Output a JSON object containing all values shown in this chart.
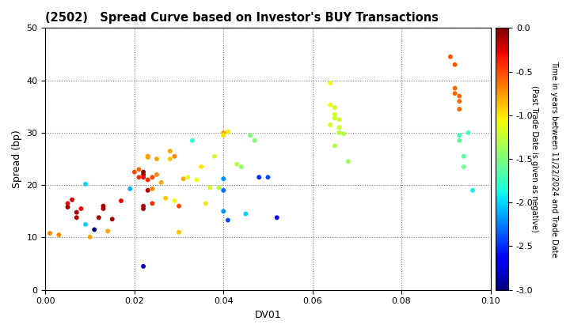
{
  "title": "(2502)   Spread Curve based on Investor's BUY Transactions",
  "xlabel": "DV01",
  "ylabel": "Spread (bp)",
  "xlim": [
    0.0,
    0.1
  ],
  "ylim": [
    0,
    50
  ],
  "xticks": [
    0.0,
    0.02,
    0.04,
    0.06,
    0.08,
    0.1
  ],
  "yticks": [
    0,
    10,
    20,
    30,
    40,
    50
  ],
  "colorbar_label_line1": "Time in years between 11/22/2024 and Trade Date",
  "colorbar_label_line2": "(Past Trade Date is given as negative)",
  "cmap": "jet",
  "vmin": -3.0,
  "vmax": 0.0,
  "points": [
    [
      0.001,
      10.8,
      -0.7
    ],
    [
      0.003,
      10.5,
      -0.7
    ],
    [
      0.005,
      16.5,
      -0.3
    ],
    [
      0.005,
      15.8,
      -0.1
    ],
    [
      0.006,
      17.2,
      -0.2
    ],
    [
      0.007,
      14.8,
      -0.1
    ],
    [
      0.007,
      13.8,
      -0.1
    ],
    [
      0.008,
      15.5,
      -0.3
    ],
    [
      0.009,
      12.5,
      -2.0
    ],
    [
      0.009,
      20.2,
      -2.0
    ],
    [
      0.01,
      10.1,
      -0.8
    ],
    [
      0.011,
      11.5,
      -3.0
    ],
    [
      0.012,
      13.8,
      -0.1
    ],
    [
      0.013,
      16.0,
      -0.1
    ],
    [
      0.013,
      15.5,
      -0.1
    ],
    [
      0.014,
      11.2,
      -0.8
    ],
    [
      0.015,
      13.5,
      -0.1
    ],
    [
      0.017,
      17.0,
      -0.3
    ],
    [
      0.019,
      19.3,
      -2.1
    ],
    [
      0.02,
      22.5,
      -0.5
    ],
    [
      0.021,
      21.5,
      -0.4
    ],
    [
      0.021,
      23.0,
      -0.6
    ],
    [
      0.022,
      22.5,
      -0.05
    ],
    [
      0.022,
      22.0,
      -0.05
    ],
    [
      0.022,
      21.5,
      -0.3
    ],
    [
      0.022,
      16.0,
      -0.1
    ],
    [
      0.022,
      15.5,
      -0.1
    ],
    [
      0.022,
      4.5,
      -2.8
    ],
    [
      0.023,
      21.0,
      -0.4
    ],
    [
      0.023,
      25.5,
      -0.7
    ],
    [
      0.023,
      19.0,
      -0.15
    ],
    [
      0.023,
      25.3,
      -0.8
    ],
    [
      0.024,
      19.3,
      -0.7
    ],
    [
      0.024,
      16.5,
      -0.4
    ],
    [
      0.024,
      21.5,
      -0.5
    ],
    [
      0.025,
      25.0,
      -0.8
    ],
    [
      0.025,
      22.0,
      -0.7
    ],
    [
      0.026,
      20.5,
      -0.8
    ],
    [
      0.027,
      17.5,
      -0.9
    ],
    [
      0.028,
      26.5,
      -0.8
    ],
    [
      0.028,
      25.0,
      -0.9
    ],
    [
      0.029,
      25.5,
      -0.7
    ],
    [
      0.029,
      17.0,
      -1.1
    ],
    [
      0.03,
      16.0,
      -0.5
    ],
    [
      0.03,
      11.0,
      -0.9
    ],
    [
      0.031,
      21.2,
      -0.8
    ],
    [
      0.032,
      21.5,
      -1.1
    ],
    [
      0.033,
      28.5,
      -1.8
    ],
    [
      0.034,
      21.0,
      -1.1
    ],
    [
      0.035,
      23.5,
      -1.0
    ],
    [
      0.036,
      16.5,
      -1.0
    ],
    [
      0.037,
      19.5,
      -1.2
    ],
    [
      0.038,
      25.5,
      -1.2
    ],
    [
      0.039,
      19.5,
      -1.3
    ],
    [
      0.04,
      30.0,
      -0.8
    ],
    [
      0.04,
      29.5,
      -1.0
    ],
    [
      0.04,
      15.0,
      -2.2
    ],
    [
      0.04,
      21.2,
      -2.2
    ],
    [
      0.04,
      19.0,
      -2.3
    ],
    [
      0.041,
      13.3,
      -2.4
    ],
    [
      0.041,
      30.2,
      -1.0
    ],
    [
      0.043,
      24.0,
      -1.3
    ],
    [
      0.044,
      23.5,
      -1.4
    ],
    [
      0.045,
      14.5,
      -2.0
    ],
    [
      0.046,
      29.5,
      -1.5
    ],
    [
      0.047,
      28.5,
      -1.5
    ],
    [
      0.048,
      21.5,
      -2.5
    ],
    [
      0.05,
      21.5,
      -2.4
    ],
    [
      0.052,
      13.8,
      -2.6
    ],
    [
      0.064,
      39.5,
      -1.1
    ],
    [
      0.064,
      31.5,
      -1.2
    ],
    [
      0.064,
      35.3,
      -1.1
    ],
    [
      0.065,
      34.8,
      -1.2
    ],
    [
      0.065,
      33.5,
      -1.2
    ],
    [
      0.065,
      32.8,
      -1.2
    ],
    [
      0.065,
      27.5,
      -1.3
    ],
    [
      0.066,
      32.5,
      -1.2
    ],
    [
      0.066,
      31.0,
      -1.2
    ],
    [
      0.066,
      30.0,
      -1.3
    ],
    [
      0.067,
      29.8,
      -1.3
    ],
    [
      0.068,
      24.5,
      -1.4
    ],
    [
      0.091,
      44.5,
      -0.55
    ],
    [
      0.092,
      43.0,
      -0.55
    ],
    [
      0.092,
      38.5,
      -0.6
    ],
    [
      0.092,
      37.5,
      -0.6
    ],
    [
      0.093,
      37.0,
      -0.6
    ],
    [
      0.093,
      36.0,
      -0.6
    ],
    [
      0.093,
      34.5,
      -0.6
    ],
    [
      0.093,
      29.5,
      -1.7
    ],
    [
      0.093,
      28.5,
      -1.6
    ],
    [
      0.094,
      25.5,
      -1.6
    ],
    [
      0.094,
      23.5,
      -1.55
    ],
    [
      0.095,
      30.0,
      -1.7
    ],
    [
      0.096,
      19.0,
      -1.9
    ]
  ]
}
